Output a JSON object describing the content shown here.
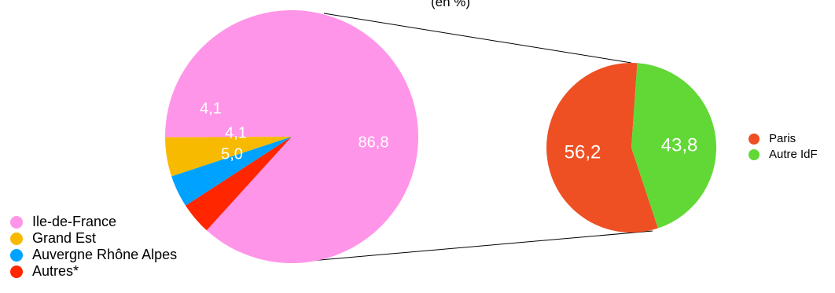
{
  "chart_data": [
    {
      "type": "pie",
      "title": "",
      "subtitle": "(en %)",
      "categories": [
        "Ile-de-France",
        "Grand Est",
        "Auvergne Rhône Alpes",
        "Autres*"
      ],
      "values": [
        86.8,
        5.0,
        4.1,
        4.1
      ],
      "value_labels": [
        "86,8",
        "5,0",
        "4,1",
        "4,1"
      ],
      "colors": [
        "#ff95e8",
        "#f8ba00",
        "#00a2ff",
        "#ff2600"
      ],
      "legend_position": "bottom-left"
    },
    {
      "type": "pie",
      "title": "",
      "categories": [
        "Paris",
        "Autre IdF"
      ],
      "values": [
        56.2,
        43.8
      ],
      "value_labels": [
        "56,2",
        "43,8"
      ],
      "colors": [
        "#ee5023",
        "#61d836"
      ],
      "legend_position": "right",
      "breakdown_of": "Ile-de-France"
    }
  ]
}
